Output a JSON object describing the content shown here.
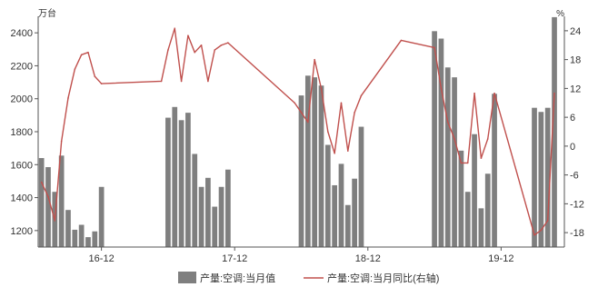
{
  "chart_data": {
    "type": "bar",
    "left_unit": "万台",
    "right_unit": "%",
    "ylim_left": [
      1100,
      2500
    ],
    "yticks_left": [
      1200,
      1400,
      1600,
      1800,
      2000,
      2200,
      2400
    ],
    "ylim_right": [
      -21,
      27
    ],
    "yticks_right": [
      -18,
      -12,
      -6,
      0,
      6,
      12,
      18,
      24
    ],
    "x_ticks": [
      {
        "label": "16-12",
        "at": 10
      },
      {
        "label": "17-12",
        "at": 30
      },
      {
        "label": "18-12",
        "at": 50
      },
      {
        "label": "19-12",
        "at": 70
      }
    ],
    "n_slots": 79,
    "series": [
      {
        "name": "产量:空调:当月值",
        "kind": "bar",
        "axis": "left",
        "color": "#7f7f7f",
        "points": [
          [
            1,
            1640
          ],
          [
            2,
            1585
          ],
          [
            3,
            1435
          ],
          [
            4,
            1655
          ],
          [
            5,
            1325
          ],
          [
            6,
            1205
          ],
          [
            7,
            1235
          ],
          [
            8,
            1160
          ],
          [
            9,
            1195
          ],
          [
            10,
            1465
          ],
          [
            20,
            1885
          ],
          [
            21,
            1950
          ],
          [
            22,
            1870
          ],
          [
            23,
            1915
          ],
          [
            24,
            1665
          ],
          [
            25,
            1465
          ],
          [
            26,
            1520
          ],
          [
            27,
            1345
          ],
          [
            28,
            1465
          ],
          [
            29,
            1570
          ],
          [
            40,
            2020
          ],
          [
            41,
            2140
          ],
          [
            42,
            2130
          ],
          [
            43,
            2080
          ],
          [
            44,
            1720
          ],
          [
            45,
            1475
          ],
          [
            46,
            1605
          ],
          [
            47,
            1355
          ],
          [
            48,
            1515
          ],
          [
            49,
            1830
          ],
          [
            60,
            2410
          ],
          [
            61,
            2365
          ],
          [
            62,
            2190
          ],
          [
            63,
            2130
          ],
          [
            64,
            1685
          ],
          [
            65,
            1435
          ],
          [
            66,
            1785
          ],
          [
            67,
            1335
          ],
          [
            68,
            1545
          ],
          [
            69,
            2030
          ],
          [
            75,
            1945
          ],
          [
            76,
            1920
          ],
          [
            77,
            1945
          ],
          [
            78,
            2495
          ]
        ]
      },
      {
        "name": "产量:空调:当月同比(右轴)",
        "kind": "line",
        "axis": "right",
        "color": "#c0504d",
        "points": [
          [
            1,
            -7.5
          ],
          [
            2,
            -10.5
          ],
          [
            3,
            -15.5
          ],
          [
            4,
            1
          ],
          [
            5,
            10
          ],
          [
            6,
            16
          ],
          [
            7,
            19
          ],
          [
            8,
            19.5
          ],
          [
            9,
            14.5
          ],
          [
            10,
            13
          ],
          [
            19,
            13.5
          ],
          [
            20,
            20
          ],
          [
            21,
            24.5
          ],
          [
            22,
            13.5
          ],
          [
            23,
            23
          ],
          [
            24,
            19.5
          ],
          [
            25,
            21
          ],
          [
            26,
            13.5
          ],
          [
            27,
            20
          ],
          [
            28,
            21
          ],
          [
            29,
            21.5
          ],
          [
            39,
            9
          ],
          [
            40,
            7
          ],
          [
            41,
            5
          ],
          [
            42,
            18
          ],
          [
            43,
            12
          ],
          [
            44,
            3
          ],
          [
            45,
            -1.5
          ],
          [
            46,
            9
          ],
          [
            47,
            -1
          ],
          [
            48,
            7
          ],
          [
            49,
            10.5
          ],
          [
            55,
            22
          ],
          [
            60,
            20.5
          ],
          [
            61,
            12
          ],
          [
            62,
            5
          ],
          [
            63,
            1.5
          ],
          [
            64,
            -3.5
          ],
          [
            65,
            -3.5
          ],
          [
            66,
            11
          ],
          [
            67,
            -2.5
          ],
          [
            68,
            1.5
          ],
          [
            69,
            11
          ],
          [
            75,
            -18.5
          ],
          [
            76,
            -17.5
          ],
          [
            77,
            -15.5
          ],
          [
            78,
            11
          ]
        ]
      }
    ],
    "legend_position": "bottom",
    "grid": false
  }
}
